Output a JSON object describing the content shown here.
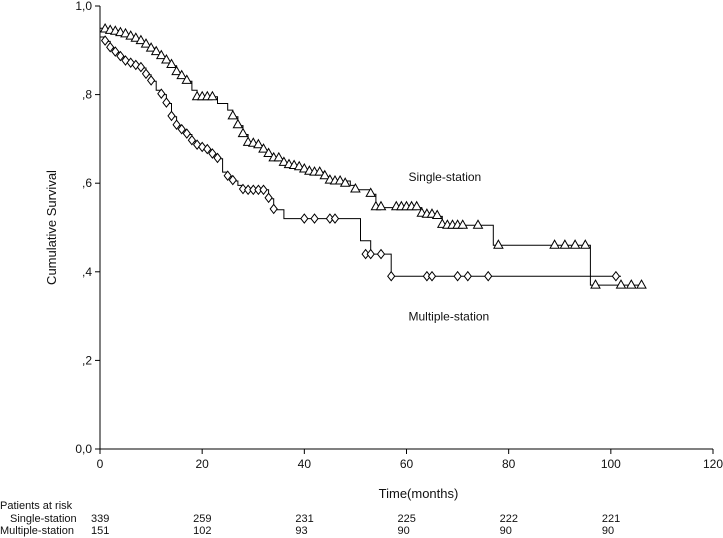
{
  "chart_data": {
    "type": "line",
    "subtype": "kaplan-meier",
    "title": "",
    "xlabel": "Time(months)",
    "ylabel": "Cumulative Survival",
    "xlim": [
      0,
      120
    ],
    "ylim": [
      0,
      1
    ],
    "x_ticks": [
      0,
      20,
      40,
      60,
      80,
      100,
      120
    ],
    "y_ticks": [
      {
        "value": 0.0,
        "label": "0,0"
      },
      {
        "value": 0.2,
        "label": ",2"
      },
      {
        "value": 0.4,
        "label": ",4"
      },
      {
        "value": 0.6,
        "label": ",6"
      },
      {
        "value": 0.8,
        "label": ",8"
      },
      {
        "value": 1.0,
        "label": "1,0"
      }
    ],
    "grid": false,
    "annotations": [
      {
        "text": "Single-station",
        "x": 60,
        "y": 0.605
      },
      {
        "text": "Multiple-station",
        "x": 60,
        "y": 0.29
      }
    ],
    "series": [
      {
        "label": "Single-station",
        "marker": "triangle",
        "steps": [
          [
            0,
            0.95
          ],
          [
            2,
            0.945
          ],
          [
            4,
            0.94
          ],
          [
            5,
            0.935
          ],
          [
            6,
            0.93
          ],
          [
            7,
            0.925
          ],
          [
            8,
            0.92
          ],
          [
            9,
            0.912
          ],
          [
            10,
            0.905
          ],
          [
            11,
            0.895
          ],
          [
            12,
            0.885
          ],
          [
            13,
            0.875
          ],
          [
            14,
            0.865
          ],
          [
            15,
            0.85
          ],
          [
            16,
            0.84
          ],
          [
            17,
            0.83
          ],
          [
            18,
            0.81
          ],
          [
            19,
            0.795
          ],
          [
            23,
            0.78
          ],
          [
            25,
            0.765
          ],
          [
            26,
            0.75
          ],
          [
            27,
            0.73
          ],
          [
            28,
            0.71
          ],
          [
            29,
            0.69
          ],
          [
            31,
            0.685
          ],
          [
            32,
            0.675
          ],
          [
            33,
            0.665
          ],
          [
            34,
            0.655
          ],
          [
            36,
            0.645
          ],
          [
            37,
            0.64
          ],
          [
            39,
            0.635
          ],
          [
            40,
            0.63
          ],
          [
            41,
            0.625
          ],
          [
            44,
            0.615
          ],
          [
            45,
            0.605
          ],
          [
            49,
            0.595
          ],
          [
            50,
            0.585
          ],
          [
            53,
            0.575
          ],
          [
            54,
            0.545
          ],
          [
            56,
            0.545
          ],
          [
            63,
            0.53
          ],
          [
            66,
            0.525
          ],
          [
            67,
            0.505
          ],
          [
            72,
            0.505
          ],
          [
            77,
            0.46
          ],
          [
            96,
            0.37
          ],
          [
            106,
            0.37
          ]
        ],
        "censored": [
          [
            1,
            0.948
          ],
          [
            2,
            0.945
          ],
          [
            3,
            0.943
          ],
          [
            4,
            0.94
          ],
          [
            5,
            0.937
          ],
          [
            6,
            0.932
          ],
          [
            7,
            0.927
          ],
          [
            8,
            0.922
          ],
          [
            9,
            0.914
          ],
          [
            10,
            0.905
          ],
          [
            11,
            0.897
          ],
          [
            12,
            0.888
          ],
          [
            13,
            0.878
          ],
          [
            14,
            0.868
          ],
          [
            15,
            0.852
          ],
          [
            16,
            0.843
          ],
          [
            17,
            0.832
          ],
          [
            19,
            0.795
          ],
          [
            20,
            0.795
          ],
          [
            21,
            0.795
          ],
          [
            22,
            0.795
          ],
          [
            26,
            0.752
          ],
          [
            27,
            0.732
          ],
          [
            28,
            0.712
          ],
          [
            29,
            0.692
          ],
          [
            30,
            0.69
          ],
          [
            31,
            0.687
          ],
          [
            32,
            0.677
          ],
          [
            33,
            0.667
          ],
          [
            34,
            0.657
          ],
          [
            35,
            0.657
          ],
          [
            36,
            0.647
          ],
          [
            37,
            0.642
          ],
          [
            38,
            0.64
          ],
          [
            39,
            0.637
          ],
          [
            40,
            0.632
          ],
          [
            41,
            0.627
          ],
          [
            42,
            0.625
          ],
          [
            43,
            0.625
          ],
          [
            44,
            0.617
          ],
          [
            45,
            0.607
          ],
          [
            46,
            0.605
          ],
          [
            47,
            0.605
          ],
          [
            48,
            0.6
          ],
          [
            50,
            0.587
          ],
          [
            53,
            0.577
          ],
          [
            54,
            0.547
          ],
          [
            55,
            0.547
          ],
          [
            58,
            0.547
          ],
          [
            59,
            0.547
          ],
          [
            60,
            0.547
          ],
          [
            61,
            0.547
          ],
          [
            62,
            0.547
          ],
          [
            63,
            0.532
          ],
          [
            64,
            0.53
          ],
          [
            65,
            0.53
          ],
          [
            66,
            0.527
          ],
          [
            67,
            0.507
          ],
          [
            68,
            0.505
          ],
          [
            69,
            0.505
          ],
          [
            70,
            0.505
          ],
          [
            71,
            0.505
          ],
          [
            74,
            0.505
          ],
          [
            78,
            0.46
          ],
          [
            89,
            0.46
          ],
          [
            91,
            0.46
          ],
          [
            93,
            0.46
          ],
          [
            95,
            0.46
          ],
          [
            97,
            0.37
          ],
          [
            102,
            0.37
          ],
          [
            104,
            0.37
          ],
          [
            106,
            0.37
          ]
        ]
      },
      {
        "label": "Multiple-station",
        "marker": "diamond",
        "steps": [
          [
            0,
            0.93
          ],
          [
            1,
            0.92
          ],
          [
            2,
            0.905
          ],
          [
            3,
            0.895
          ],
          [
            4,
            0.885
          ],
          [
            5,
            0.875
          ],
          [
            6,
            0.87
          ],
          [
            7,
            0.865
          ],
          [
            8,
            0.86
          ],
          [
            9,
            0.845
          ],
          [
            10,
            0.83
          ],
          [
            11,
            0.81
          ],
          [
            12,
            0.8
          ],
          [
            13,
            0.78
          ],
          [
            14,
            0.75
          ],
          [
            15,
            0.73
          ],
          [
            16,
            0.72
          ],
          [
            17,
            0.71
          ],
          [
            18,
            0.695
          ],
          [
            19,
            0.685
          ],
          [
            20,
            0.68
          ],
          [
            21,
            0.675
          ],
          [
            22,
            0.665
          ],
          [
            23,
            0.655
          ],
          [
            24,
            0.625
          ],
          [
            25,
            0.615
          ],
          [
            26,
            0.605
          ],
          [
            27,
            0.595
          ],
          [
            28,
            0.585
          ],
          [
            33,
            0.565
          ],
          [
            34,
            0.54
          ],
          [
            36,
            0.52
          ],
          [
            50,
            0.52
          ],
          [
            51,
            0.47
          ],
          [
            53,
            0.44
          ],
          [
            56,
            0.44
          ],
          [
            57,
            0.39
          ],
          [
            102,
            0.39
          ]
        ],
        "censored": [
          [
            1,
            0.922
          ],
          [
            2,
            0.907
          ],
          [
            3,
            0.897
          ],
          [
            4,
            0.887
          ],
          [
            5,
            0.877
          ],
          [
            6,
            0.872
          ],
          [
            7,
            0.867
          ],
          [
            8,
            0.862
          ],
          [
            9,
            0.847
          ],
          [
            10,
            0.832
          ],
          [
            12,
            0.802
          ],
          [
            13,
            0.782
          ],
          [
            14,
            0.752
          ],
          [
            15,
            0.732
          ],
          [
            16,
            0.722
          ],
          [
            17,
            0.712
          ],
          [
            18,
            0.697
          ],
          [
            19,
            0.687
          ],
          [
            20,
            0.682
          ],
          [
            21,
            0.677
          ],
          [
            22,
            0.667
          ],
          [
            23,
            0.657
          ],
          [
            25,
            0.617
          ],
          [
            26,
            0.607
          ],
          [
            28,
            0.587
          ],
          [
            29,
            0.585
          ],
          [
            30,
            0.585
          ],
          [
            31,
            0.585
          ],
          [
            32,
            0.585
          ],
          [
            33,
            0.567
          ],
          [
            34,
            0.542
          ],
          [
            40,
            0.52
          ],
          [
            42,
            0.52
          ],
          [
            45,
            0.52
          ],
          [
            46,
            0.52
          ],
          [
            52,
            0.44
          ],
          [
            53,
            0.44
          ],
          [
            55,
            0.44
          ],
          [
            57,
            0.39
          ],
          [
            64,
            0.39
          ],
          [
            65,
            0.39
          ],
          [
            70,
            0.39
          ],
          [
            72,
            0.39
          ],
          [
            76,
            0.39
          ],
          [
            101,
            0.39
          ]
        ]
      }
    ]
  },
  "risk_table": {
    "title": "Patients at risk",
    "columns_time": [
      0,
      20,
      40,
      60,
      80,
      100
    ],
    "rows": [
      {
        "label": "Single-station",
        "counts": [
          "339",
          "259",
          "231",
          "225",
          "222",
          "221"
        ]
      },
      {
        "label": "Multiple-station",
        "counts": [
          "151",
          "102",
          "93",
          "90",
          "90",
          "90"
        ]
      }
    ]
  }
}
